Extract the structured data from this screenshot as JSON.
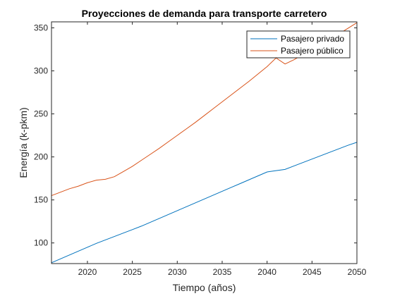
{
  "chart_data": {
    "type": "line",
    "title": "Proyecciones de demanda para transporte carretero",
    "xlabel": "Tiempo (años)",
    "ylabel": "Energía (k-pkm)",
    "xlim": [
      2016,
      2050
    ],
    "ylim": [
      76,
      357
    ],
    "xticks": [
      2020,
      2025,
      2030,
      2035,
      2040,
      2045,
      2050
    ],
    "yticks": [
      100,
      150,
      200,
      250,
      300,
      350
    ],
    "grid": false,
    "legend_position": "top-right",
    "series": [
      {
        "name": "Pasajero privado",
        "color": "#0072BD",
        "x": [
          2016,
          2017,
          2018,
          2019,
          2020,
          2021,
          2022,
          2023,
          2024,
          2025,
          2026,
          2027,
          2028,
          2029,
          2030,
          2031,
          2032,
          2033,
          2034,
          2035,
          2036,
          2037,
          2038,
          2039,
          2040,
          2041,
          2042,
          2043,
          2044,
          2045,
          2046,
          2047,
          2048,
          2049,
          2050
        ],
        "values": [
          77,
          81.5,
          86,
          90.5,
          95,
          99.5,
          103.5,
          107.5,
          111.5,
          115.5,
          119.5,
          124,
          128.5,
          133,
          137.5,
          142,
          146.5,
          151,
          155.5,
          160,
          164.5,
          169,
          173.5,
          178,
          182.5,
          184,
          185.5,
          189.5,
          193.5,
          197.5,
          201.5,
          205.5,
          209.5,
          213.5,
          217
        ]
      },
      {
        "name": "Pasajero público",
        "color": "#D95319",
        "x": [
          2016,
          2017,
          2018,
          2019,
          2020,
          2021,
          2022,
          2023,
          2024,
          2025,
          2026,
          2027,
          2028,
          2029,
          2030,
          2031,
          2032,
          2033,
          2034,
          2035,
          2036,
          2037,
          2038,
          2039,
          2040,
          2041,
          2042,
          2043,
          2044,
          2045,
          2046,
          2047,
          2048,
          2049,
          2050
        ],
        "values": [
          155,
          159,
          163,
          166,
          170,
          173,
          174,
          177,
          183,
          189,
          196,
          203,
          210,
          217.5,
          225,
          232.5,
          240,
          248,
          256,
          264,
          272,
          280,
          288,
          296.5,
          305,
          315,
          308,
          313,
          319,
          325,
          331,
          337,
          343,
          349.5,
          356
        ]
      }
    ]
  }
}
